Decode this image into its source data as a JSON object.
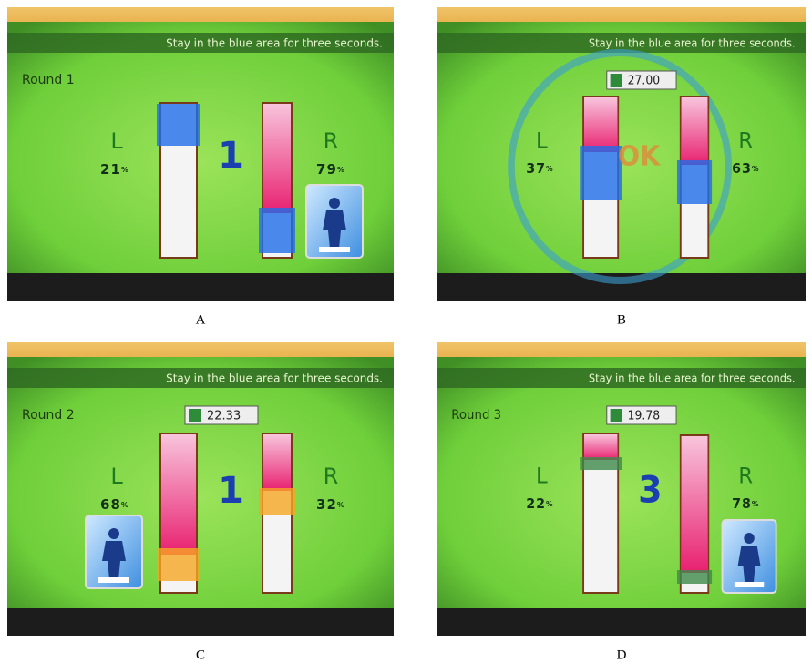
{
  "panels": [
    {
      "caption": "A",
      "instruction": "Stay in the blue area for three seconds.",
      "round": "Round 1",
      "left_label": "L",
      "right_label": "R",
      "left_value": "21",
      "left_unit": "%",
      "right_value": "79",
      "right_unit": "%",
      "center": "1"
    },
    {
      "caption": "B",
      "instruction": "Stay in the blue area for three seconds.",
      "timer": "27.00",
      "left_label": "L",
      "right_label": "R",
      "left_value": "37",
      "left_unit": "%",
      "right_value": "63",
      "right_unit": "%",
      "center": "OK"
    },
    {
      "caption": "C",
      "instruction": "Stay in the blue area for three seconds.",
      "round": "Round 2",
      "timer": "22.33",
      "left_label": "L",
      "right_label": "R",
      "left_value": "68",
      "left_unit": "%",
      "right_value": "32",
      "right_unit": "%",
      "center": "1"
    },
    {
      "caption": "D",
      "instruction": "Stay in the blue area for three seconds.",
      "round": "Round 3",
      "timer": "19.78",
      "left_label": "L",
      "right_label": "R",
      "left_value": "22",
      "left_unit": "%",
      "right_value": "78",
      "right_unit": "%",
      "center": "3"
    }
  ]
}
